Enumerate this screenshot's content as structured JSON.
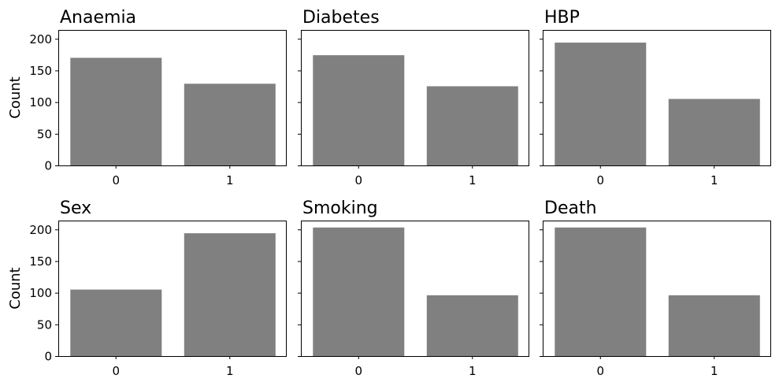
{
  "chart_data": [
    {
      "type": "bar",
      "title": "Anaemia",
      "categories": [
        "0",
        "1"
      ],
      "values": [
        170,
        129
      ],
      "ylabel": "Count",
      "xlabel": "",
      "ylim": [
        0,
        214
      ],
      "yticks": [
        0,
        50,
        100,
        150,
        200
      ],
      "bar_color": "#808080",
      "grid": false
    },
    {
      "type": "bar",
      "title": "Diabetes",
      "categories": [
        "0",
        "1"
      ],
      "values": [
        174,
        125
      ],
      "ylabel": "",
      "xlabel": "",
      "ylim": [
        0,
        214
      ],
      "yticks": [
        0,
        50,
        100,
        150,
        200
      ],
      "bar_color": "#808080",
      "grid": false
    },
    {
      "type": "bar",
      "title": "HBP",
      "categories": [
        "0",
        "1"
      ],
      "values": [
        194,
        105
      ],
      "ylabel": "",
      "xlabel": "",
      "ylim": [
        0,
        214
      ],
      "yticks": [
        0,
        50,
        100,
        150,
        200
      ],
      "bar_color": "#808080",
      "grid": false
    },
    {
      "type": "bar",
      "title": "Sex",
      "categories": [
        "0",
        "1"
      ],
      "values": [
        105,
        194
      ],
      "ylabel": "Count",
      "xlabel": "",
      "ylim": [
        0,
        214
      ],
      "yticks": [
        0,
        50,
        100,
        150,
        200
      ],
      "bar_color": "#808080",
      "grid": false
    },
    {
      "type": "bar",
      "title": "Smoking",
      "categories": [
        "0",
        "1"
      ],
      "values": [
        203,
        96
      ],
      "ylabel": "",
      "xlabel": "",
      "ylim": [
        0,
        214
      ],
      "yticks": [
        0,
        50,
        100,
        150,
        200
      ],
      "bar_color": "#808080",
      "grid": false
    },
    {
      "type": "bar",
      "title": "Death",
      "categories": [
        "0",
        "1"
      ],
      "values": [
        203,
        96
      ],
      "ylabel": "",
      "xlabel": "",
      "ylim": [
        0,
        214
      ],
      "yticks": [
        0,
        50,
        100,
        150,
        200
      ],
      "bar_color": "#808080",
      "grid": false
    }
  ]
}
